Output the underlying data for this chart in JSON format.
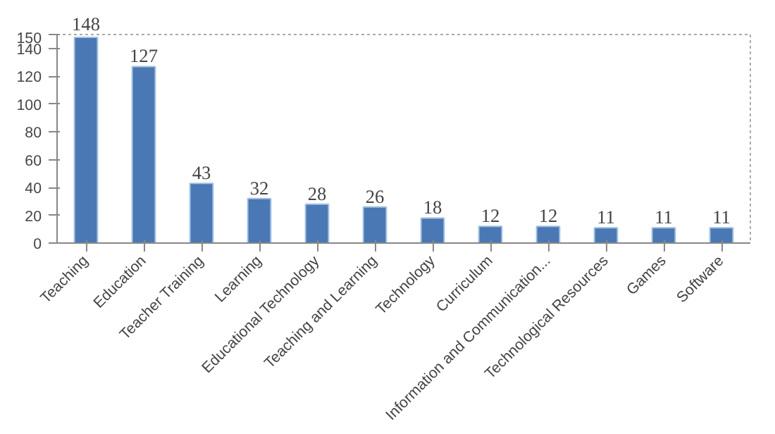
{
  "chart_data": {
    "type": "bar",
    "categories": [
      "Teaching",
      "Education",
      "Teacher Training",
      "Learning",
      "Educational Technology",
      "Teaching and Learning",
      "Technology",
      "Curriculum",
      "Information and Communication...",
      "Technological Resources",
      "Games",
      "Software"
    ],
    "values": [
      148,
      127,
      43,
      32,
      28,
      26,
      18,
      12,
      12,
      11,
      11,
      11
    ],
    "color": "#4a78b4",
    "ylim": [
      0,
      150
    ],
    "yticks": [
      0,
      20,
      40,
      60,
      80,
      100,
      120,
      140,
      150
    ],
    "grid": false,
    "data_labels": true
  }
}
